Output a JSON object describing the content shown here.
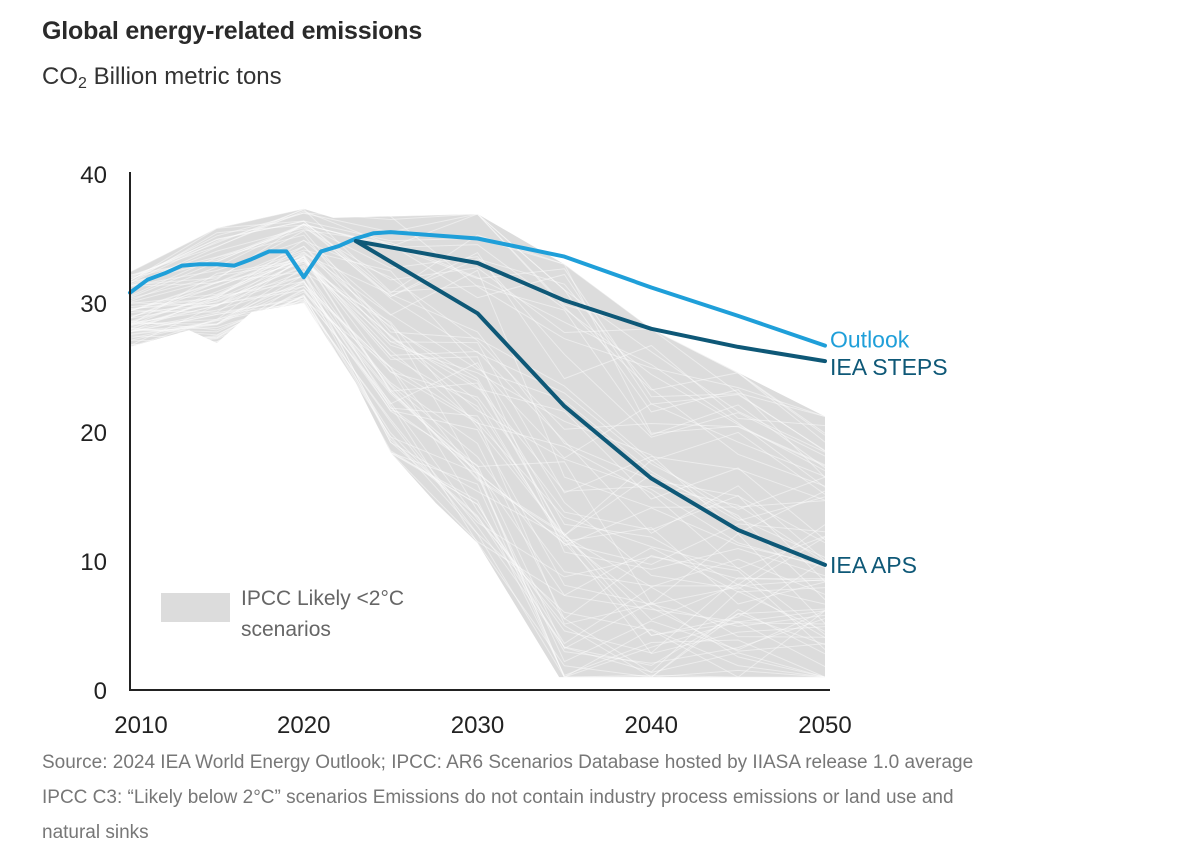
{
  "header": {
    "title": "Global energy-related emissions",
    "subtitle_prefix": "CO",
    "subtitle_sub": "2",
    "subtitle_rest": " Billion metric tons"
  },
  "footer": {
    "lines": [
      "Source: 2024 IEA World Energy Outlook; IPCC: AR6 Scenarios Database hosted by IIASA release 1.0 average",
      "IPCC C3: “Likely below 2°C” scenarios Emissions do not contain industry process emissions or land use and",
      "natural sinks"
    ]
  },
  "colors": {
    "outlook": "#1f9fd9",
    "iea": "#0e5877",
    "band": "#dcdcdc",
    "axis": "#222222"
  },
  "chart_data": {
    "type": "line",
    "title": "Global energy-related emissions",
    "subtitle": "CO2 Billion metric tons",
    "xlabel": "",
    "ylabel": "CO2 Billion metric tons",
    "xlim": [
      2010,
      2050
    ],
    "ylim": [
      0,
      40
    ],
    "x_ticks": [
      2010,
      2020,
      2030,
      2040,
      2050
    ],
    "y_ticks": [
      0,
      10,
      20,
      30,
      40
    ],
    "grid": false,
    "series": [
      {
        "name": "Outlook",
        "label": "Outlook",
        "color_key": "outlook",
        "points": [
          [
            2010,
            30.8
          ],
          [
            2011,
            31.8
          ],
          [
            2012,
            32.3
          ],
          [
            2013,
            32.9
          ],
          [
            2014,
            33.0
          ],
          [
            2015,
            33.0
          ],
          [
            2016,
            32.9
          ],
          [
            2017,
            33.4
          ],
          [
            2018,
            34.0
          ],
          [
            2019,
            34.0
          ],
          [
            2020,
            32.0
          ],
          [
            2021,
            34.0
          ],
          [
            2022,
            34.4
          ],
          [
            2023,
            35.0
          ],
          [
            2024,
            35.4
          ],
          [
            2025,
            35.5
          ],
          [
            2030,
            35.0
          ],
          [
            2035,
            33.6
          ],
          [
            2040,
            31.2
          ],
          [
            2045,
            29.0
          ],
          [
            2050,
            26.7
          ]
        ]
      },
      {
        "name": "IEA STEPS",
        "label": "IEA STEPS",
        "color_key": "iea",
        "points": [
          [
            2023,
            34.8
          ],
          [
            2030,
            33.1
          ],
          [
            2035,
            30.2
          ],
          [
            2040,
            28.0
          ],
          [
            2045,
            26.6
          ],
          [
            2050,
            25.5
          ]
        ]
      },
      {
        "name": "IEA APS",
        "label": "IEA APS",
        "color_key": "iea",
        "points": [
          [
            2023,
            34.8
          ],
          [
            2030,
            29.2
          ],
          [
            2035,
            22.0
          ],
          [
            2040,
            16.4
          ],
          [
            2045,
            12.4
          ],
          [
            2050,
            9.7
          ]
        ]
      }
    ],
    "band": {
      "name": "IPCC Likely <2°C scenarios",
      "legend_line1": "IPCC Likely <2°C",
      "legend_line2": "scenarios",
      "legend_position": "bottom-left",
      "upper": [
        [
          2010,
          32.4
        ],
        [
          2015,
          35.8
        ],
        [
          2020,
          37.3
        ],
        [
          2021.7,
          36.6
        ],
        [
          2030,
          36.9
        ],
        [
          2035,
          33.0
        ],
        [
          2040,
          28.0
        ],
        [
          2045,
          24.6
        ],
        [
          2050,
          21.2
        ]
      ],
      "lower": [
        [
          2010,
          26.6
        ],
        [
          2013.4,
          27.9
        ],
        [
          2015,
          26.9
        ],
        [
          2017,
          29.3
        ],
        [
          2020,
          30.0
        ],
        [
          2023,
          23.8
        ],
        [
          2025,
          18.4
        ],
        [
          2027.6,
          14.5
        ],
        [
          2030,
          11.4
        ],
        [
          2034.7,
          1.0
        ],
        [
          2050,
          1.0
        ]
      ]
    }
  }
}
